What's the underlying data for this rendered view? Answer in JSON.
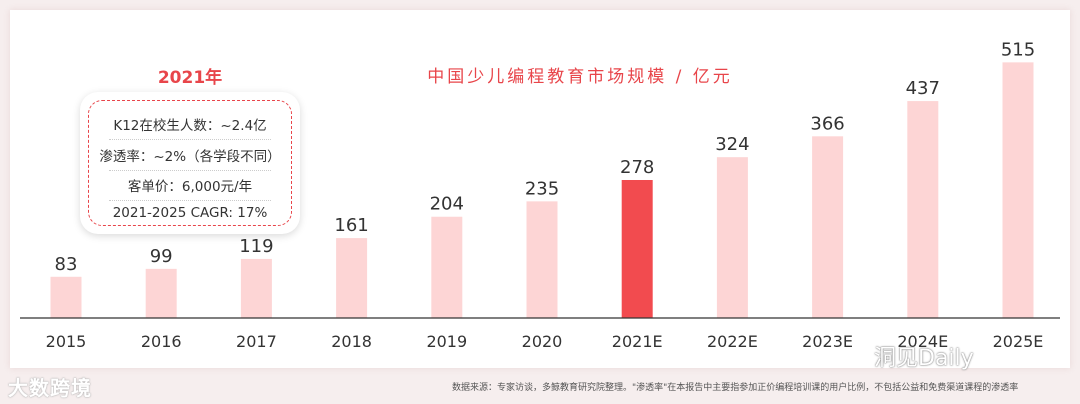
{
  "chart_data": {
    "type": "bar",
    "title": "中国少儿编程教育市场规模 / 亿元",
    "categories": [
      "2015",
      "2016",
      "2017",
      "2018",
      "2019",
      "2020",
      "2021E",
      "2022E",
      "2023E",
      "2024E",
      "2025E"
    ],
    "values": [
      83,
      99,
      119,
      161,
      204,
      235,
      278,
      324,
      366,
      437,
      515
    ],
    "highlight_category": "2021E",
    "colors": {
      "bar": "#fdd5d5",
      "highlight": "#f24b4f",
      "title": "#e8454a",
      "axis": "#333333"
    },
    "ylim": [
      0,
      560
    ],
    "grid": false
  },
  "annotation": {
    "year": "2021年",
    "lines": [
      "K12在校生人数：~2.4亿",
      "渗透率：~2%（各学段不同）",
      "客单价：6,000元/年",
      "2021-2025 CAGR: 17%"
    ]
  },
  "source_note": "数据来源：专家访谈，多鲸教育研究院整理。\"渗透率\"在本报告中主要指参加正价编程培训课的用户比例，不包括公益和免费渠道课程的渗透率",
  "watermarks": {
    "left": "大数跨境",
    "right": "洞见Daily"
  }
}
